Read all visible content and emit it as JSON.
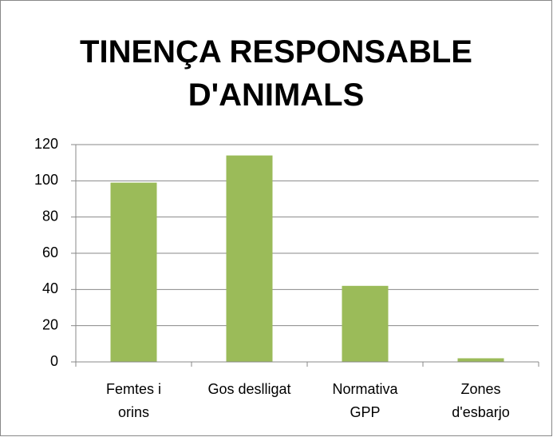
{
  "chart_data": {
    "type": "bar",
    "title": "TINENÇA RESPONSABLE D'ANIMALS",
    "categories": [
      [
        "Femtes i",
        "orins"
      ],
      [
        "Gos deslligat"
      ],
      [
        "Normativa",
        "GPP"
      ],
      [
        "Zones",
        "d'esbarjo"
      ]
    ],
    "values": [
      99,
      114,
      42,
      2
    ],
    "color": "#9bbb59",
    "ylim": [
      0,
      120
    ],
    "yticks": [
      0,
      20,
      40,
      60,
      80,
      100,
      120
    ],
    "grid": true
  }
}
